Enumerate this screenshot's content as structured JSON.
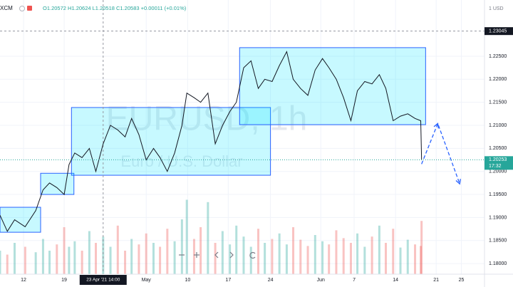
{
  "header": {
    "symbol": "XCM",
    "ohlc": "O1.20572 H1.20624 L1.20518 C1.20583 +0.00011 (+0.01%)",
    "currency": "1 USD"
  },
  "watermark": {
    "title": "EURUSD, 1h",
    "subtitle": "Euro / U.S. Dollar"
  },
  "chart_data": {
    "type": "line",
    "xlim": [
      -2.9,
      56.75
    ],
    "ylim": [
      1.1777,
      1.2372
    ],
    "xticks": [
      {
        "value": 0,
        "label": "12"
      },
      {
        "value": 5.0,
        "label": "19"
      },
      {
        "value": 15.1,
        "label": "May"
      },
      {
        "value": 20.2,
        "label": "10"
      },
      {
        "value": 25.2,
        "label": "17"
      },
      {
        "value": 30.4,
        "label": "24"
      },
      {
        "value": 36.6,
        "label": "Jun"
      },
      {
        "value": 40.7,
        "label": "7"
      },
      {
        "value": 45.8,
        "label": "14"
      },
      {
        "value": 50.8,
        "label": "21"
      },
      {
        "value": 53.9,
        "label": "25"
      }
    ],
    "yticks": [
      {
        "value": 1.18,
        "label": "1.18000"
      },
      {
        "value": 1.185,
        "label": "1.18500"
      },
      {
        "value": 1.19,
        "label": "1.19000"
      },
      {
        "value": 1.195,
        "label": "1.19500"
      },
      {
        "value": 1.2,
        "label": "1.20000"
      },
      {
        "value": 1.205,
        "label": "1.20500"
      },
      {
        "value": 1.21,
        "label": "1.21000"
      },
      {
        "value": 1.215,
        "label": "1.21500"
      },
      {
        "value": 1.22,
        "label": "1.22000"
      },
      {
        "value": 1.225,
        "label": "1.22500"
      }
    ],
    "grid": true,
    "up_color": "#26a69a",
    "down_color": "#ef5350",
    "line_color": "#131722",
    "x": [
      -2.9,
      -2.0,
      -1.1,
      0.2,
      1.5,
      2.4,
      3.2,
      4.1,
      5.0,
      5.6,
      6.3,
      7.2,
      8.1,
      8.9,
      9.8,
      10.7,
      11.6,
      12.5,
      13.3,
      14.2,
      15.1,
      16.0,
      16.8,
      17.7,
      18.6,
      19.5,
      20.1,
      21.0,
      21.8,
      22.7,
      23.6,
      24.5,
      25.4,
      26.2,
      27.1,
      28.0,
      28.9,
      29.7,
      30.6,
      31.5,
      32.4,
      33.2,
      34.1,
      35.0,
      35.9,
      36.8,
      37.6,
      38.5,
      39.4,
      40.3,
      41.1,
      42.0,
      42.9,
      43.8,
      44.6,
      45.5,
      46.4,
      47.3,
      48.2,
      48.9,
      49.0
    ],
    "series": [
      {
        "name": "EURUSD",
        "values": [
          1.1905,
          1.187,
          1.1895,
          1.188,
          1.1915,
          1.196,
          1.1975,
          1.1965,
          1.195,
          1.2015,
          1.204,
          1.203,
          1.205,
          1.2,
          1.206,
          1.21,
          1.209,
          1.2075,
          1.2115,
          1.208,
          1.2025,
          1.205,
          1.203,
          1.2,
          1.204,
          1.21,
          1.217,
          1.216,
          1.215,
          1.217,
          1.206,
          1.21,
          1.213,
          1.215,
          1.2225,
          1.224,
          1.218,
          1.22,
          1.2195,
          1.223,
          1.226,
          1.22,
          1.218,
          1.2165,
          1.222,
          1.2245,
          1.2225,
          1.22,
          1.216,
          1.211,
          1.2175,
          1.2195,
          1.219,
          1.221,
          1.218,
          1.211,
          1.212,
          1.2125,
          1.2115,
          1.211,
          1.2025
        ]
      }
    ],
    "volume_lim": [
      0,
      100
    ],
    "volume": [
      30,
      25,
      40,
      35,
      28,
      45,
      30,
      38,
      60,
      35,
      42,
      30,
      55,
      40,
      48,
      35,
      62,
      30,
      45,
      38,
      52,
      40,
      35,
      58,
      42,
      70,
      95,
      45,
      60,
      92,
      40,
      55,
      38,
      62,
      48,
      35,
      58,
      40,
      45,
      52,
      38,
      60,
      44,
      36,
      50,
      42,
      38,
      56,
      46,
      40,
      52,
      35,
      48,
      62,
      40,
      58,
      34,
      44,
      38,
      36,
      68
    ],
    "boxes": [
      {
        "x": [
          -2.9,
          2.1
        ],
        "y": [
          1.1868,
          1.19222
        ]
      },
      {
        "x": [
          2.1,
          6.2
        ],
        "y": [
          1.195,
          1.1996
        ]
      },
      {
        "x": [
          5.9,
          30.4
        ],
        "y": [
          1.19917,
          1.21387
        ]
      },
      {
        "x": [
          26.6,
          49.5
        ],
        "y": [
          1.21015,
          1.22686
        ]
      }
    ],
    "box_color": "#2962ff",
    "box_fill": "rgba(0,229,255,0.22)",
    "arrow": {
      "x": [
        49.0,
        51.0,
        53.7
      ],
      "y": [
        1.2016,
        1.2104,
        1.1973
      ]
    },
    "reference_line": {
      "value": 1.23045,
      "label": "1.23045"
    },
    "last_price": {
      "value": 1.20253,
      "label": "1.20253",
      "countdown": "17:32",
      "color": "#26a69a"
    },
    "crosshair": {
      "x": 9.8,
      "label": "23 Apr '21 14:00"
    }
  }
}
